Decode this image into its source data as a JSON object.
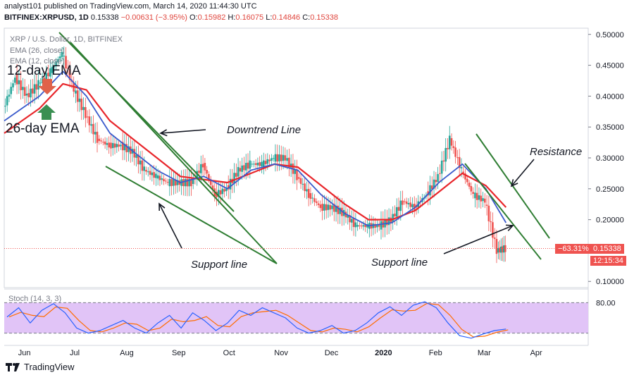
{
  "header": {
    "publisher": "analyst101 published on TradingView.com, March 14, 2020 11:44:30 UTC",
    "symbol": "BITFINEX:XRPUSD, 1D",
    "last": "0.15338",
    "change": "−0.00631 (−3.95%)",
    "o_label": "O:",
    "o": "0.15982",
    "h_label": "H:",
    "h": "0.16075",
    "l_label": "L:",
    "l": "0.14846",
    "c_label": "C:",
    "c": "0.15338"
  },
  "legend": {
    "title": "XRP / U.S. Dollar, 1D, BITFINEX",
    "ema26": "EMA (26, close)",
    "ema12": "EMA (12, close)"
  },
  "annotations": {
    "ema12": "12-day EMA",
    "ema26": "26-day EMA",
    "downtrend": "Downtrend Line",
    "support_left": "Support line",
    "support_right": "Support line",
    "resistance": "Resistance"
  },
  "price_tags": {
    "pct": "−63.31%",
    "price": "0.15338",
    "timer": "12:15:34"
  },
  "stoch": {
    "label": "Stoch (14, 3, 3)",
    "level_80": "80.00"
  },
  "footer": {
    "brand": "TradingView"
  },
  "colors": {
    "ema26": "#e8262b",
    "ema12": "#3b5bcc",
    "up": "#26a69a",
    "down": "#ef5350",
    "trendline": "#2e7d32",
    "stoch_fill": "#e1c4f7",
    "stoch_k": "#2962ff",
    "stoch_d": "#ff6d00"
  },
  "chart_data": {
    "type": "candlestick",
    "x_ticks": [
      "Jun",
      "Jul",
      "Aug",
      "Sep",
      "Oct",
      "Nov",
      "Dec",
      "2020",
      "Feb",
      "Mar",
      "Apr"
    ],
    "y_ticks": [
      "0.50000",
      "0.45000",
      "0.40000",
      "0.35000",
      "0.30000",
      "0.25000",
      "0.20000",
      "0.15000",
      "0.10000"
    ],
    "ylim": [
      0.09,
      0.51
    ],
    "close_series": [
      [
        "2019-05-20",
        0.38
      ],
      [
        "2019-05-27",
        0.43
      ],
      [
        "2019-06-03",
        0.4
      ],
      [
        "2019-06-10",
        0.42
      ],
      [
        "2019-06-17",
        0.44
      ],
      [
        "2019-06-24",
        0.47
      ],
      [
        "2019-07-01",
        0.41
      ],
      [
        "2019-07-08",
        0.37
      ],
      [
        "2019-07-15",
        0.33
      ],
      [
        "2019-07-22",
        0.32
      ],
      [
        "2019-07-29",
        0.32
      ],
      [
        "2019-08-05",
        0.31
      ],
      [
        "2019-08-12",
        0.28
      ],
      [
        "2019-08-19",
        0.27
      ],
      [
        "2019-08-26",
        0.26
      ],
      [
        "2019-09-02",
        0.26
      ],
      [
        "2019-09-09",
        0.26
      ],
      [
        "2019-09-16",
        0.29
      ],
      [
        "2019-09-23",
        0.24
      ],
      [
        "2019-09-30",
        0.25
      ],
      [
        "2019-10-07",
        0.28
      ],
      [
        "2019-10-14",
        0.29
      ],
      [
        "2019-10-21",
        0.29
      ],
      [
        "2019-10-28",
        0.3
      ],
      [
        "2019-11-04",
        0.3
      ],
      [
        "2019-11-11",
        0.27
      ],
      [
        "2019-11-18",
        0.24
      ],
      [
        "2019-11-25",
        0.22
      ],
      [
        "2019-12-02",
        0.22
      ],
      [
        "2019-12-09",
        0.21
      ],
      [
        "2019-12-16",
        0.19
      ],
      [
        "2019-12-23",
        0.19
      ],
      [
        "2019-12-30",
        0.19
      ],
      [
        "2020-01-06",
        0.2
      ],
      [
        "2020-01-13",
        0.23
      ],
      [
        "2020-01-20",
        0.22
      ],
      [
        "2020-01-27",
        0.24
      ],
      [
        "2020-02-03",
        0.27
      ],
      [
        "2020-02-10",
        0.33
      ],
      [
        "2020-02-17",
        0.28
      ],
      [
        "2020-02-24",
        0.24
      ],
      [
        "2020-03-02",
        0.23
      ],
      [
        "2020-03-09",
        0.15
      ],
      [
        "2020-03-14",
        0.15338
      ]
    ],
    "ema12_series": [
      [
        "2019-05-20",
        0.36
      ],
      [
        "2019-06-10",
        0.4
      ],
      [
        "2019-06-24",
        0.44
      ],
      [
        "2019-07-08",
        0.4
      ],
      [
        "2019-07-22",
        0.34
      ],
      [
        "2019-08-05",
        0.31
      ],
      [
        "2019-08-19",
        0.28
      ],
      [
        "2019-09-02",
        0.26
      ],
      [
        "2019-09-16",
        0.27
      ],
      [
        "2019-09-30",
        0.25
      ],
      [
        "2019-10-14",
        0.28
      ],
      [
        "2019-10-28",
        0.29
      ],
      [
        "2019-11-11",
        0.28
      ],
      [
        "2019-11-25",
        0.24
      ],
      [
        "2019-12-09",
        0.21
      ],
      [
        "2019-12-23",
        0.19
      ],
      [
        "2020-01-06",
        0.195
      ],
      [
        "2020-01-20",
        0.22
      ],
      [
        "2020-02-03",
        0.26
      ],
      [
        "2020-02-17",
        0.29
      ],
      [
        "2020-03-02",
        0.25
      ],
      [
        "2020-03-14",
        0.195
      ]
    ],
    "ema26_series": [
      [
        "2019-05-20",
        0.34
      ],
      [
        "2019-06-10",
        0.38
      ],
      [
        "2019-06-24",
        0.42
      ],
      [
        "2019-07-08",
        0.41
      ],
      [
        "2019-07-22",
        0.36
      ],
      [
        "2019-08-05",
        0.33
      ],
      [
        "2019-08-19",
        0.3
      ],
      [
        "2019-09-02",
        0.27
      ],
      [
        "2019-09-16",
        0.265
      ],
      [
        "2019-09-30",
        0.26
      ],
      [
        "2019-10-14",
        0.275
      ],
      [
        "2019-10-28",
        0.29
      ],
      [
        "2019-11-11",
        0.285
      ],
      [
        "2019-11-25",
        0.255
      ],
      [
        "2019-12-09",
        0.225
      ],
      [
        "2019-12-23",
        0.2
      ],
      [
        "2020-01-06",
        0.2
      ],
      [
        "2020-01-20",
        0.215
      ],
      [
        "2020-02-03",
        0.245
      ],
      [
        "2020-02-17",
        0.275
      ],
      [
        "2020-03-02",
        0.255
      ],
      [
        "2020-03-14",
        0.22
      ]
    ],
    "stoch_k": [
      52,
      70,
      40,
      65,
      78,
      60,
      30,
      20,
      25,
      35,
      45,
      30,
      20,
      40,
      55,
      30,
      60,
      45,
      25,
      40,
      65,
      55,
      70,
      60,
      50,
      30,
      20,
      25,
      35,
      20,
      25,
      40,
      60,
      72,
      55,
      75,
      82,
      70,
      40,
      15,
      10,
      18,
      25,
      28
    ],
    "stoch_levels": [
      80,
      20
    ]
  }
}
